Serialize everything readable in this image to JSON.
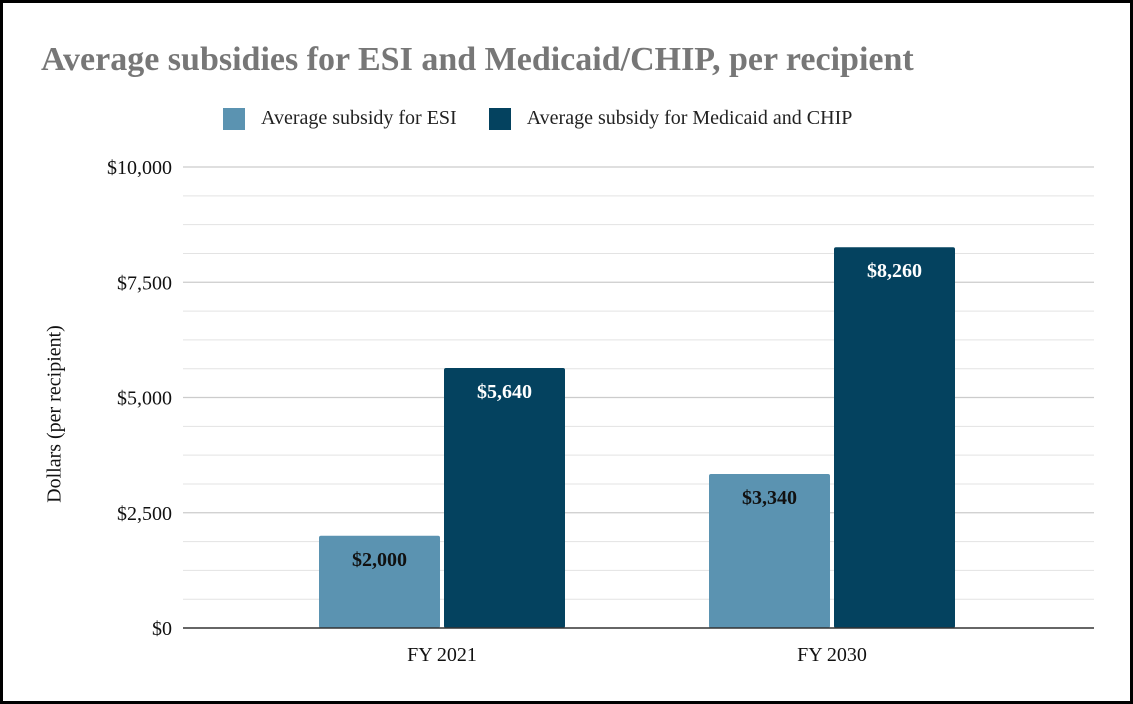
{
  "chart_data": {
    "type": "bar",
    "title": "Average subsidies for ESI and Medicaid/CHIP, per recipient",
    "xlabel": "",
    "ylabel": "Dollars (per recipient)",
    "categories": [
      "FY 2021",
      "FY 2030"
    ],
    "series": [
      {
        "name": "Average subsidy for ESI",
        "color": "#5b93b1",
        "values": [
          2000,
          3340
        ],
        "labels": [
          "$2,000",
          "$3,340"
        ],
        "label_color": "#111111"
      },
      {
        "name": "Average subsidy for Medicaid and CHIP",
        "color": "#04425f",
        "values": [
          5640,
          8260
        ],
        "labels": [
          "$5,640",
          "$8,260"
        ],
        "label_color": "#ffffff"
      }
    ],
    "ylim": [
      0,
      10000
    ],
    "yticks": [
      0,
      2500,
      5000,
      7500,
      10000
    ],
    "ytick_labels": [
      "$0",
      "$2,500",
      "$5,000",
      "$7,500",
      "$10,000"
    ],
    "minor_gridlines_per_major": 3,
    "grid": true,
    "legend_position": "top"
  }
}
